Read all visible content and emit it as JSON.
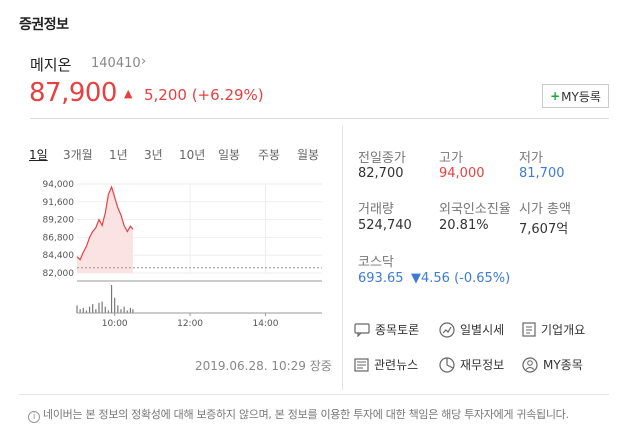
{
  "section_title": "증권정보",
  "stock": {
    "name": "메지온",
    "code": "140410",
    "price": "87,900",
    "change": "5,200 (+6.29%)",
    "my_button": "MY등록"
  },
  "tabs": [
    "1일",
    "3개월",
    "1년",
    "3년",
    "10년",
    "일봉",
    "주봉",
    "월봉"
  ],
  "chart": {
    "y_ticks": [
      "94,000",
      "91,600",
      "89,200",
      "86,800",
      "84,400",
      "82,000"
    ],
    "x_ticks": [
      "10:00",
      "12:00",
      "14:00"
    ],
    "timestamp": "2019.06.28. 10:29 장중"
  },
  "chart_data": {
    "type": "area",
    "x": [
      "09:00",
      "09:05",
      "09:10",
      "09:15",
      "09:20",
      "09:25",
      "09:30",
      "09:35",
      "09:40",
      "09:45",
      "09:50",
      "09:55",
      "10:00",
      "10:05",
      "10:10",
      "10:15",
      "10:20",
      "10:25",
      "10:29"
    ],
    "y": [
      84200,
      83800,
      84800,
      85600,
      86800,
      87600,
      88100,
      89200,
      88400,
      90100,
      92600,
      93600,
      92200,
      90800,
      89800,
      88400,
      87600,
      88300,
      87900
    ],
    "ylim": [
      82000,
      94000
    ],
    "y_ticks": [
      94000,
      91600,
      89200,
      86800,
      84400,
      82000
    ],
    "x_ticks": [
      "10:00",
      "12:00",
      "14:00"
    ],
    "baseline": 82700,
    "volume": [
      6,
      3,
      4,
      2,
      5,
      7,
      3,
      8,
      9,
      5,
      2,
      22,
      12,
      6,
      3,
      5,
      2,
      4,
      3
    ]
  },
  "stats": [
    {
      "label": "전일종가",
      "value": "82,700",
      "color": "#333333"
    },
    {
      "label": "고가",
      "value": "94,000",
      "color": "#e84040"
    },
    {
      "label": "저가",
      "value": "81,700",
      "color": "#3d7bd9"
    },
    {
      "label": "거래량",
      "value": "524,740",
      "color": "#333333"
    },
    {
      "label": "외국인소진율",
      "value": "20.81%",
      "color": "#333333"
    },
    {
      "label": "시가 총액",
      "value": "7,607억",
      "color": "#333333"
    }
  ],
  "market": {
    "name": "코스닥",
    "value": "693.65",
    "change": "▼4.56 (-0.65%)"
  },
  "links": [
    {
      "label": "종목토론",
      "icon": "chat-icon"
    },
    {
      "label": "일별시세",
      "icon": "trend-icon"
    },
    {
      "label": "기업개요",
      "icon": "document-icon"
    },
    {
      "label": "관련뉴스",
      "icon": "news-icon"
    },
    {
      "label": "재무정보",
      "icon": "pie-icon"
    },
    {
      "label": "MY종목",
      "icon": "person-icon"
    }
  ],
  "footer": "네이버는 본 정보의 정확성에 대해 보증하지 않으며, 본 정보를 이용한 투자에 대한 책임은 해당 투자자에게 귀속됩니다."
}
